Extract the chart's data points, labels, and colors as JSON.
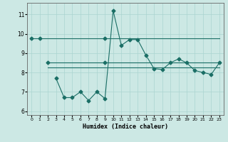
{
  "xlabel": "Humidex (Indice chaleur)",
  "background_color": "#cce8e4",
  "grid_color": "#aad4d0",
  "line_color": "#1a6e65",
  "xlim": [
    -0.5,
    23.5
  ],
  "ylim": [
    5.8,
    11.6
  ],
  "xticks": [
    0,
    1,
    2,
    3,
    4,
    5,
    6,
    7,
    8,
    9,
    10,
    11,
    12,
    13,
    14,
    15,
    16,
    17,
    18,
    19,
    20,
    21,
    22,
    23
  ],
  "yticks": [
    6,
    7,
    8,
    9,
    10,
    11
  ],
  "line1_x": [
    0,
    1,
    2,
    3,
    4,
    5,
    6,
    7,
    8,
    9,
    10,
    11,
    12,
    13,
    14,
    15,
    16,
    17,
    18,
    19,
    20,
    21,
    22,
    23
  ],
  "line1_y": [
    9.75,
    9.75,
    9.75,
    9.75,
    9.75,
    9.75,
    9.75,
    9.75,
    9.75,
    9.75,
    9.75,
    9.75,
    9.75,
    9.75,
    9.75,
    9.75,
    9.75,
    9.75,
    9.75,
    9.75,
    9.75,
    9.75,
    9.75,
    9.75
  ],
  "line2_x": [
    2,
    3,
    4,
    5,
    6,
    7,
    8,
    9,
    10,
    11,
    12,
    13,
    14,
    15,
    16,
    17,
    18,
    19,
    20,
    21,
    22,
    23
  ],
  "line2_y": [
    8.5,
    8.5,
    8.5,
    8.5,
    8.5,
    8.5,
    8.5,
    8.5,
    8.5,
    8.5,
    8.5,
    8.5,
    8.5,
    8.5,
    8.5,
    8.5,
    8.5,
    8.5,
    8.5,
    8.5,
    8.5,
    8.5
  ],
  "line3_x": [
    2,
    3,
    4,
    5,
    6,
    7,
    8,
    9,
    10,
    11,
    12,
    13,
    14,
    15,
    16,
    17,
    18,
    19,
    20,
    21,
    22,
    23
  ],
  "line3_y": [
    8.25,
    8.25,
    8.25,
    8.25,
    8.25,
    8.25,
    8.25,
    8.25,
    8.25,
    8.25,
    8.25,
    8.25,
    8.25,
    8.25,
    8.25,
    8.25,
    8.25,
    8.25,
    8.25,
    8.25,
    8.25,
    8.25
  ],
  "line4_x": [
    3,
    4,
    5,
    6,
    7,
    8,
    9,
    10,
    11,
    12,
    13,
    14,
    15,
    16,
    17,
    18,
    19,
    20,
    21,
    22,
    23
  ],
  "line4_y": [
    7.7,
    6.7,
    6.7,
    7.0,
    6.55,
    7.0,
    6.65,
    11.2,
    9.4,
    9.7,
    9.7,
    8.9,
    8.2,
    8.15,
    8.5,
    8.7,
    8.5,
    8.1,
    8.0,
    7.9,
    8.5
  ],
  "markers_line1_x": [
    0,
    1,
    9
  ],
  "markers_line1_y": [
    9.75,
    9.75,
    9.75
  ],
  "markers_line2_x": [
    2,
    9
  ],
  "markers_line2_y": [
    8.5,
    8.5
  ]
}
